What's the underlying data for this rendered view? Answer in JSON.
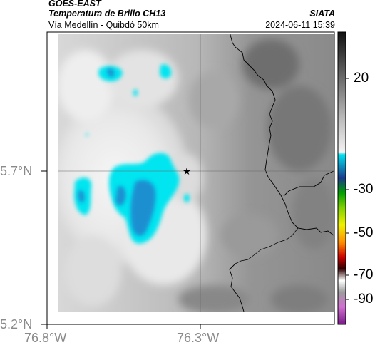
{
  "header": {
    "satellite": "GOES-EAST",
    "product": "Temperatura de Brillo CH13",
    "route": "Vía Medellín - Quibdó 50km",
    "org": "SIATA",
    "datetime": "2024-06-11 15:39"
  },
  "axes": {
    "lat_labels": [
      "5.7°N",
      "5.2°N"
    ],
    "lon_labels": [
      "76.8°W",
      "76.3°W"
    ]
  },
  "colorbar": {
    "ticks": [
      "20",
      "-30",
      "-50",
      "-70",
      "-90"
    ]
  },
  "marker": {
    "name": "star-marker"
  },
  "colors": {
    "cloud_cyan": "#00e5f0",
    "cloud_blue": "#1a8fd0",
    "frame": "#000000"
  }
}
